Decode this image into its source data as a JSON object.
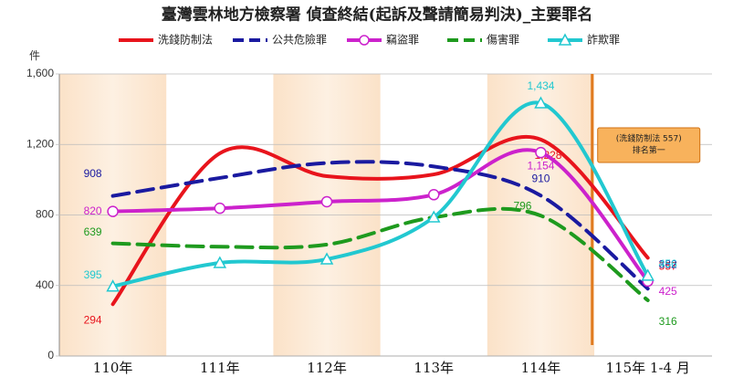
{
  "chart_data": {
    "type": "line",
    "title": "臺灣雲林地方檢察署 偵查終結(起訴及聲請簡易判決)_主要罪名",
    "y_label": "件",
    "categories": [
      "110年",
      "111年",
      "112年",
      "113年",
      "114年",
      "115年 1-4 月"
    ],
    "ylim": [
      0,
      1600
    ],
    "yticks": [
      0,
      400,
      800,
      {
        "value": 1200,
        "label": "1,200"
      },
      {
        "value": 1600,
        "label": "1,600"
      }
    ],
    "series": [
      {
        "name": "洗錢防制法",
        "color": "#e8141c",
        "dash": false,
        "marker": null,
        "values": [
          294,
          1150,
          1020,
          1030,
          1228,
          557
        ],
        "value_labels": [
          "294",
          null,
          null,
          null,
          "1,228",
          "557"
        ]
      },
      {
        "name": "公共危險罪",
        "color": "#1a1aa0",
        "dash": true,
        "marker": null,
        "values": [
          908,
          1010,
          1095,
          1075,
          910,
          382
        ],
        "value_labels": [
          "908",
          null,
          null,
          null,
          "910",
          "382"
        ]
      },
      {
        "name": "竊盜罪",
        "color": "#cc22cc",
        "dash": false,
        "marker": "circle",
        "values": [
          820,
          838,
          875,
          915,
          1154,
          425
        ],
        "value_labels": [
          "820",
          null,
          null,
          null,
          "1,154",
          "425"
        ]
      },
      {
        "name": "傷害罪",
        "color": "#1e9a1e",
        "dash": true,
        "marker": null,
        "values": [
          639,
          620,
          632,
          787,
          796,
          316
        ],
        "value_labels": [
          "639",
          null,
          null,
          null,
          "796",
          "316"
        ]
      },
      {
        "name": "詐欺罪",
        "color": "#22c8d0",
        "dash": false,
        "marker": "triangle",
        "values": [
          395,
          528,
          549,
          787,
          1434,
          456
        ],
        "value_labels": [
          "395",
          null,
          null,
          null,
          "1,434",
          "456"
        ]
      }
    ],
    "annotation": [
      "(洗錢防制法 557)",
      "排名第一"
    ]
  }
}
